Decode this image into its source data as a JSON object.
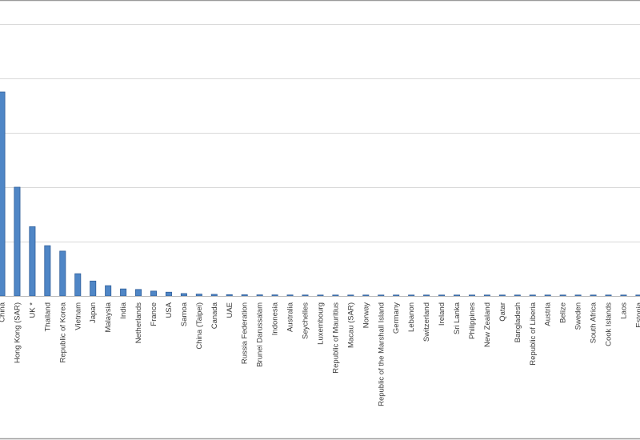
{
  "chart_data": {
    "type": "bar",
    "title": "",
    "xlabel": "",
    "ylabel": "",
    "grid": true,
    "legend": "none",
    "ylim": [
      0,
      100
    ],
    "colors": {
      "bar": "#4f86c6",
      "bar_edge": "#2f5e9a",
      "grid": "#d9d9d9",
      "frame": "#9a9a9a"
    },
    "categories": [
      "China",
      "Hong Kong (SAR)",
      "UK *",
      "Thailand",
      "Republic of Korea",
      "Vietnam",
      "Japan",
      "Malaysia",
      "India",
      "Netherlands",
      "France",
      "USA",
      "Samoa",
      "China (Taipei)",
      "Canada",
      "UAE",
      "Russia Federation",
      "Brunei Darussalam",
      "Indonesia",
      "Australia",
      "Seychelles",
      "Luxembourg",
      "Republic of Mauritius",
      "Macau (SAR)",
      "Norway",
      "Republic of the Marshall Island",
      "Germany",
      "Lebanon",
      "Switzerland",
      "Ireland",
      "Sri Lanka",
      "Philippines",
      "New Zealand",
      "Qatar",
      "Bangladesh",
      "Republic of Liberia",
      "Austria",
      "Belize",
      "Sweden",
      "South Africa",
      "Cook Islands",
      "Laos",
      "Estonia"
    ],
    "values": [
      75,
      40,
      25.5,
      18.5,
      16.5,
      8.2,
      5.5,
      3.8,
      2.6,
      2.4,
      1.8,
      1.4,
      0.9,
      0.7,
      0.6,
      0.5,
      0.45,
      0.42,
      0.4,
      0.38,
      0.36,
      0.34,
      0.32,
      0.3,
      0.3,
      0.3,
      0.28,
      0.28,
      0.27,
      0.26,
      0.26,
      0.25,
      0.25,
      0.24,
      0.24,
      0.23,
      0.23,
      0.22,
      0.22,
      0.21,
      0.21,
      0.2,
      0.2
    ]
  }
}
